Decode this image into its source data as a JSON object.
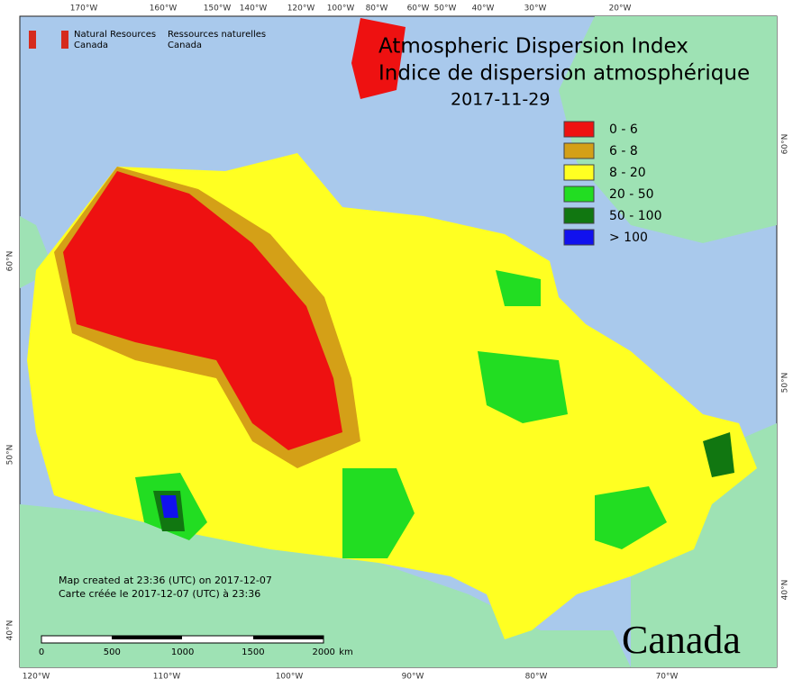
{
  "header": {
    "agency_en": "Natural Resources",
    "agency_en2": "Canada",
    "agency_fr": "Ressources naturelles",
    "agency_fr2": "Canada"
  },
  "title": {
    "line1": "Atmospheric Dispersion Index",
    "line2": "Indice de dispersion atmosphérique",
    "date": "2017-11-29"
  },
  "legend": [
    {
      "label": "0 - 6",
      "color": "#ee1111"
    },
    {
      "label": "6 - 8",
      "color": "#d4a017"
    },
    {
      "label": "8 - 20",
      "color": "#ffff22"
    },
    {
      "label": "20 - 50",
      "color": "#22dd22"
    },
    {
      "label": "50 - 100",
      "color": "#117711"
    },
    {
      "label": "> 100",
      "color": "#1111ee"
    }
  ],
  "graticule": {
    "top": [
      "170°W",
      "160°W",
      "150°W",
      "140°W",
      "120°W",
      "100°W",
      "80°W",
      "60°W",
      "50°W",
      "40°W",
      "30°W",
      "20°W"
    ],
    "bottom": [
      "120°W",
      "110°W",
      "100°W",
      "90°W",
      "80°W",
      "70°W"
    ],
    "left": [
      "60°N",
      "50°N",
      "40°N"
    ],
    "right": [
      "60°N",
      "50°N",
      "40°N"
    ]
  },
  "credits": {
    "en": "Map created at 23:36 (UTC) on 2017-12-07",
    "fr": "Carte créée le 2017-12-07 (UTC) à 23:36"
  },
  "scale": {
    "labels": [
      "0",
      "500",
      "1000",
      "1500",
      "2000"
    ],
    "unit": "km"
  },
  "wordmark": "Canada"
}
